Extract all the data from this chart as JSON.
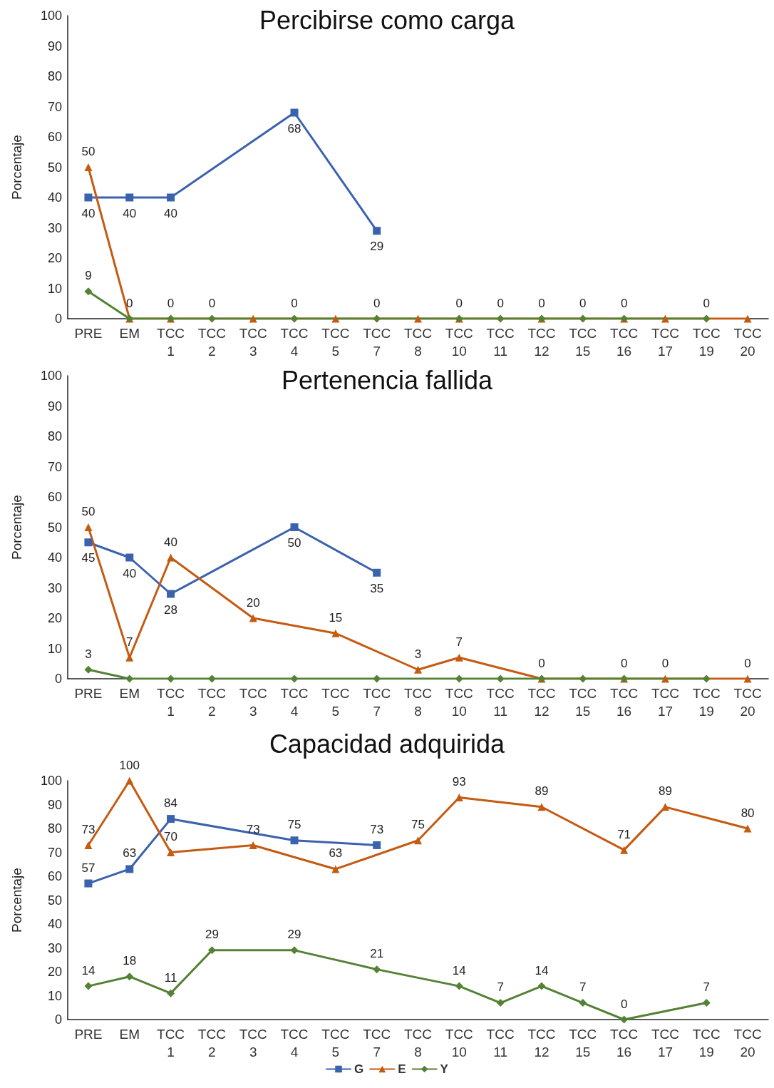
{
  "chart_data": [
    {
      "type": "line",
      "title": "Percibirse como carga",
      "ylabel": "Porcentaje",
      "categories": [
        "PRE",
        "EM",
        "TCC 1",
        "TCC 2",
        "TCC 3",
        "TCC 4",
        "TCC 5",
        "TCC 7",
        "TCC 8",
        "TCC 10",
        "TCC 11",
        "TCC 12",
        "TCC 15",
        "TCC 16",
        "TCC 17",
        "TCC 19",
        "TCC 20"
      ],
      "ylim": [
        0,
        100
      ],
      "yticks": [
        0,
        10,
        20,
        30,
        40,
        50,
        60,
        70,
        80,
        90,
        100
      ],
      "grid": false,
      "series": [
        {
          "color": "#3b62ad",
          "marker": "square",
          "values": [
            40,
            40,
            40,
            null,
            null,
            68,
            null,
            29,
            null,
            null,
            null,
            null,
            null,
            null,
            null,
            null,
            null
          ],
          "value_labels": [
            "40",
            "40",
            "40",
            null,
            null,
            "68",
            null,
            "29",
            null,
            null,
            null,
            null,
            null,
            null,
            null,
            null,
            null
          ]
        },
        {
          "color": "#c55a11",
          "marker": "triangle",
          "values": [
            50,
            0,
            0,
            null,
            0,
            null,
            0,
            null,
            0,
            0,
            null,
            0,
            null,
            0,
            0,
            null,
            0
          ],
          "value_labels": [
            "50",
            null,
            null,
            null,
            null,
            null,
            null,
            null,
            null,
            null,
            null,
            null,
            null,
            null,
            null,
            null,
            null
          ]
        },
        {
          "color": "#548235",
          "marker": "diamond",
          "values": [
            9,
            0,
            0,
            0,
            null,
            0,
            null,
            0,
            null,
            0,
            0,
            0,
            0,
            0,
            null,
            0,
            null
          ],
          "value_labels": [
            "9",
            "0",
            "0",
            "0",
            null,
            "0",
            null,
            "0",
            null,
            "0",
            "0",
            "0",
            "0",
            "0",
            null,
            "0",
            null
          ]
        }
      ]
    },
    {
      "type": "line",
      "title": "Pertenencia fallida",
      "ylabel": "Porcentaje",
      "categories": [
        "PRE",
        "EM",
        "TCC 1",
        "TCC 2",
        "TCC 3",
        "TCC 4",
        "TCC 5",
        "TCC 7",
        "TCC 8",
        "TCC 10",
        "TCC 11",
        "TCC 12",
        "TCC 15",
        "TCC 16",
        "TCC 17",
        "TCC 19",
        "TCC 20"
      ],
      "ylim": [
        0,
        100
      ],
      "yticks": [
        0,
        10,
        20,
        30,
        40,
        50,
        60,
        70,
        80,
        90,
        100
      ],
      "grid": false,
      "series": [
        {
          "color": "#3b62ad",
          "marker": "square",
          "values": [
            45,
            40,
            28,
            null,
            null,
            50,
            null,
            35,
            null,
            null,
            null,
            null,
            null,
            null,
            null,
            null,
            null
          ],
          "value_labels": [
            "45",
            "40",
            "28",
            null,
            null,
            "50",
            null,
            "35",
            null,
            null,
            null,
            null,
            null,
            null,
            null,
            null,
            null
          ]
        },
        {
          "color": "#c55a11",
          "marker": "triangle",
          "values": [
            50,
            7,
            40,
            null,
            20,
            null,
            15,
            null,
            3,
            7,
            null,
            0,
            null,
            0,
            0,
            null,
            0
          ],
          "value_labels": [
            "50",
            "7",
            "40",
            null,
            "20",
            null,
            "15",
            null,
            "3",
            "7",
            null,
            "0",
            null,
            "0",
            "0",
            null,
            "0"
          ]
        },
        {
          "color": "#548235",
          "marker": "diamond",
          "values": [
            3,
            0,
            0,
            0,
            null,
            0,
            null,
            0,
            null,
            0,
            0,
            0,
            0,
            0,
            null,
            0,
            null
          ],
          "value_labels": [
            "3",
            null,
            null,
            null,
            null,
            null,
            null,
            null,
            null,
            null,
            null,
            null,
            null,
            null,
            null,
            null,
            null
          ]
        }
      ]
    },
    {
      "type": "line",
      "title": "Capacidad adquirida",
      "ylabel": "Porcentaje",
      "categories": [
        "PRE",
        "EM",
        "TCC 1",
        "TCC 2",
        "TCC 3",
        "TCC 4",
        "TCC 5",
        "TCC 7",
        "TCC 8",
        "TCC 10",
        "TCC 11",
        "TCC 12",
        "TCC 15",
        "TCC 16",
        "TCC 17",
        "TCC 19",
        "TCC 20"
      ],
      "ylim": [
        0,
        100
      ],
      "yticks": [
        0,
        10,
        20,
        30,
        40,
        50,
        60,
        70,
        80,
        90,
        100
      ],
      "grid": false,
      "legend": "bottom",
      "data_labels": true,
      "series": [
        {
          "name": "G",
          "color": "#3b62ad",
          "marker": "square",
          "values": [
            57,
            63,
            84,
            null,
            null,
            75,
            null,
            73,
            null,
            null,
            null,
            null,
            null,
            null,
            null,
            null,
            null
          ]
        },
        {
          "name": "E",
          "color": "#c55a11",
          "marker": "triangle",
          "values": [
            73,
            100,
            70,
            null,
            73,
            null,
            63,
            null,
            75,
            93,
            null,
            89,
            null,
            71,
            89,
            null,
            80
          ]
        },
        {
          "name": "Y",
          "color": "#548235",
          "marker": "diamond",
          "values": [
            14,
            18,
            11,
            29,
            null,
            29,
            null,
            21,
            null,
            14,
            7,
            14,
            7,
            0,
            null,
            7,
            null
          ]
        }
      ]
    }
  ]
}
